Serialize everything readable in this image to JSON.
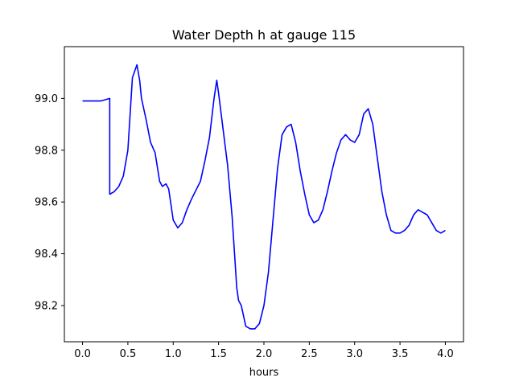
{
  "chart_data": {
    "type": "line",
    "title": "Water Depth h at gauge 115",
    "xlabel": "hours",
    "ylabel": "",
    "xlim": [
      -0.2,
      4.2
    ],
    "ylim": [
      98.06,
      99.2
    ],
    "xticks": [
      0.0,
      0.5,
      1.0,
      1.5,
      2.0,
      2.5,
      3.0,
      3.5,
      4.0
    ],
    "xtick_labels": [
      "0.0",
      "0.5",
      "1.0",
      "1.5",
      "2.0",
      "2.5",
      "3.0",
      "3.5",
      "4.0"
    ],
    "yticks": [
      98.2,
      98.4,
      98.6,
      98.8,
      99.0
    ],
    "ytick_labels": [
      "98.2",
      "98.4",
      "98.6",
      "98.8",
      "99.0"
    ],
    "grid": false,
    "legend": "none",
    "series": [
      {
        "color": "#0000ff",
        "x": [
          0.0,
          0.1,
          0.2,
          0.25,
          0.3,
          0.3,
          0.35,
          0.4,
          0.45,
          0.5,
          0.55,
          0.6,
          0.63,
          0.65,
          0.7,
          0.75,
          0.8,
          0.85,
          0.88,
          0.92,
          0.95,
          1.0,
          1.05,
          1.1,
          1.15,
          1.2,
          1.3,
          1.35,
          1.4,
          1.45,
          1.48,
          1.5,
          1.55,
          1.6,
          1.65,
          1.7,
          1.72,
          1.75,
          1.8,
          1.85,
          1.9,
          1.95,
          2.0,
          2.05,
          2.1,
          2.15,
          2.2,
          2.25,
          2.3,
          2.35,
          2.4,
          2.45,
          2.5,
          2.55,
          2.6,
          2.65,
          2.7,
          2.75,
          2.8,
          2.85,
          2.9,
          2.95,
          3.0,
          3.05,
          3.1,
          3.15,
          3.2,
          3.25,
          3.3,
          3.35,
          3.4,
          3.45,
          3.5,
          3.55,
          3.6,
          3.65,
          3.7,
          3.75,
          3.8,
          3.85,
          3.9,
          3.95,
          4.0
        ],
        "y": [
          98.99,
          98.99,
          98.99,
          98.995,
          99.0,
          98.63,
          98.64,
          98.66,
          98.7,
          98.8,
          99.08,
          99.13,
          99.07,
          99.0,
          98.92,
          98.83,
          98.79,
          98.68,
          98.66,
          98.67,
          98.65,
          98.53,
          98.5,
          98.52,
          98.57,
          98.61,
          98.68,
          98.76,
          98.85,
          99.0,
          99.07,
          99.02,
          98.88,
          98.74,
          98.54,
          98.27,
          98.22,
          98.2,
          98.12,
          98.11,
          98.11,
          98.13,
          98.2,
          98.33,
          98.53,
          98.73,
          98.86,
          98.89,
          98.9,
          98.83,
          98.72,
          98.63,
          98.55,
          98.52,
          98.53,
          98.57,
          98.64,
          98.72,
          98.79,
          98.84,
          98.86,
          98.84,
          98.83,
          98.86,
          98.94,
          98.96,
          98.9,
          98.77,
          98.64,
          98.55,
          98.49,
          98.48,
          98.48,
          98.49,
          98.51,
          98.55,
          98.57,
          98.56,
          98.55,
          98.52,
          98.49,
          98.48,
          98.49
        ]
      }
    ]
  }
}
